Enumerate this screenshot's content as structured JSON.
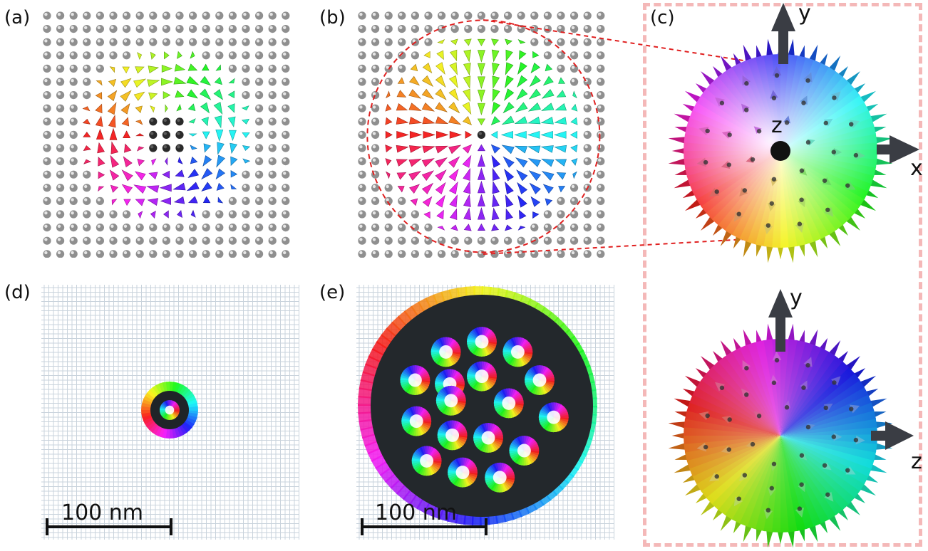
{
  "panels": {
    "a": {
      "label": "(a)"
    },
    "b": {
      "label": "(b)"
    },
    "c": {
      "label": "(c)"
    },
    "d": {
      "label": "(d)",
      "scalebar": "100 nm"
    },
    "e": {
      "label": "(e)",
      "scalebar": "100 nm"
    }
  },
  "sphere_top": {
    "axes": [
      "y",
      "x",
      "z"
    ]
  },
  "sphere_bottom": {
    "axes": [
      "y",
      "z"
    ]
  },
  "colors": {
    "dashed_circle": "#e02020",
    "frame": "#f4b8b8",
    "neutral_sphere": "#9a9a9a",
    "core": "#222222",
    "lattice": "#c9d3dc"
  }
}
